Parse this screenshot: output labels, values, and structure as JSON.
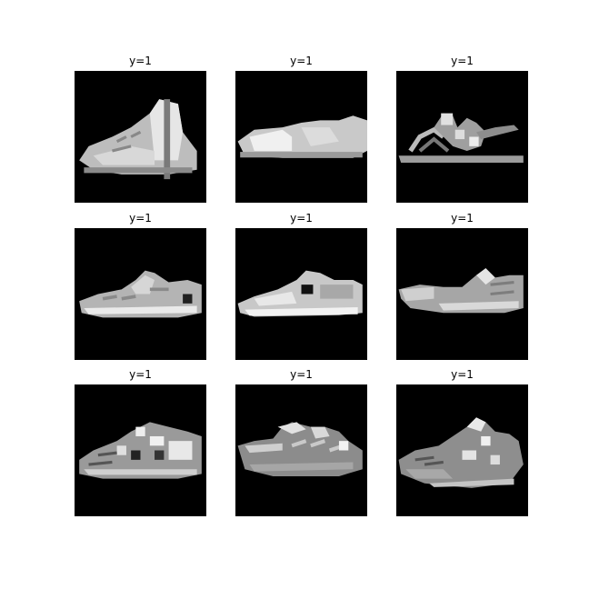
{
  "figure": {
    "colormap": "gray",
    "background_color": "#ffffff",
    "image_background": "#000000",
    "panels": [
      {
        "title": "y=1",
        "subject": "high-top-sneaker"
      },
      {
        "title": "y=1",
        "subject": "slip-on-sneaker"
      },
      {
        "title": "y=1",
        "subject": "strappy-sandal"
      },
      {
        "title": "y=1",
        "subject": "sneaker"
      },
      {
        "title": "y=1",
        "subject": "sneaker"
      },
      {
        "title": "y=1",
        "subject": "sneaker"
      },
      {
        "title": "y=1",
        "subject": "sneaker"
      },
      {
        "title": "y=1",
        "subject": "sneaker"
      },
      {
        "title": "y=1",
        "subject": "sneaker"
      }
    ]
  }
}
